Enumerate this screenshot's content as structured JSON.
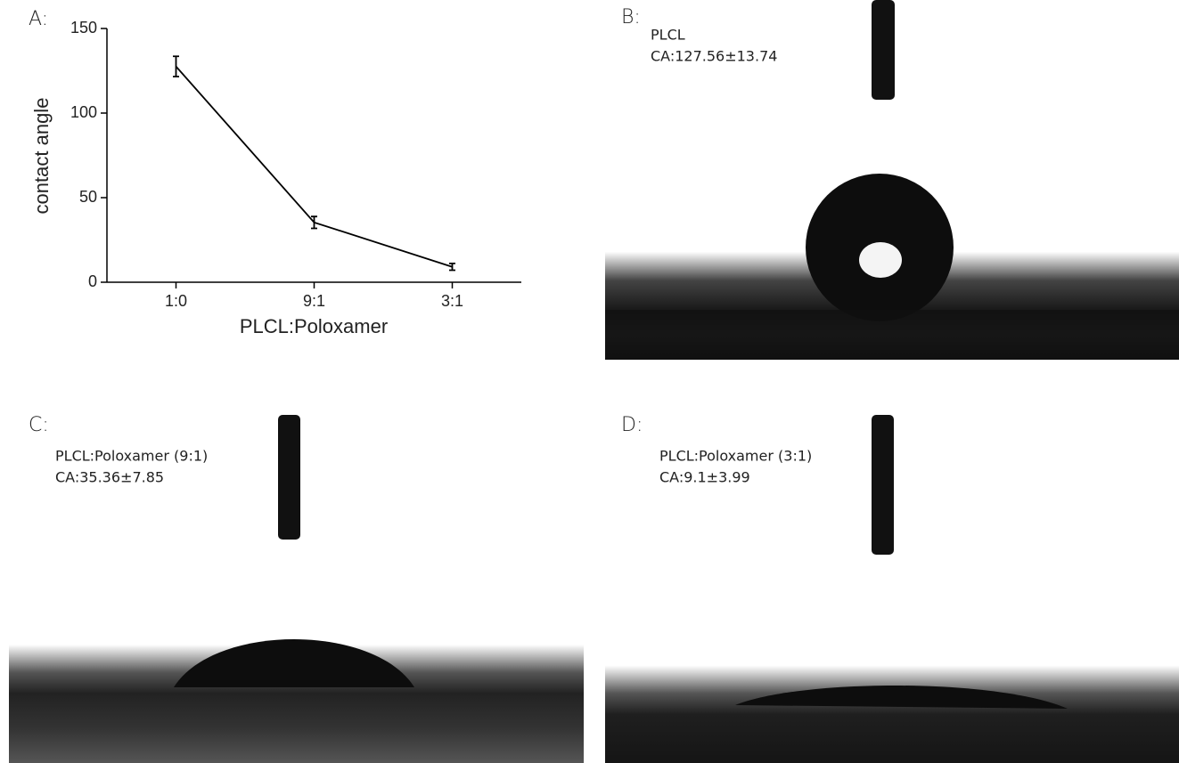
{
  "chart_data": {
    "type": "line",
    "ylabel": "contact angle",
    "xlabel": "PLCL:Poloxamer",
    "categories": [
      "1:0",
      "9:1",
      "3:1"
    ],
    "values": [
      127.56,
      35.36,
      9.1
    ],
    "errors": [
      6,
      3.5,
      2
    ],
    "color": "#000000",
    "ylim": [
      0,
      150
    ],
    "yticks": [
      0,
      50,
      100,
      150
    ]
  },
  "panels": [
    {
      "label": "A:"
    },
    {
      "label": "B:",
      "lines": [
        "PLCL",
        "CA:127.56±13.74"
      ]
    },
    {
      "label": "C:",
      "lines": [
        "PLCL:Poloxamer (9:1)",
        "CA:35.36±7.85"
      ]
    },
    {
      "label": "D:",
      "lines": [
        "PLCL:Poloxamer (3:1)",
        "CA:9.1±3.99"
      ]
    }
  ]
}
